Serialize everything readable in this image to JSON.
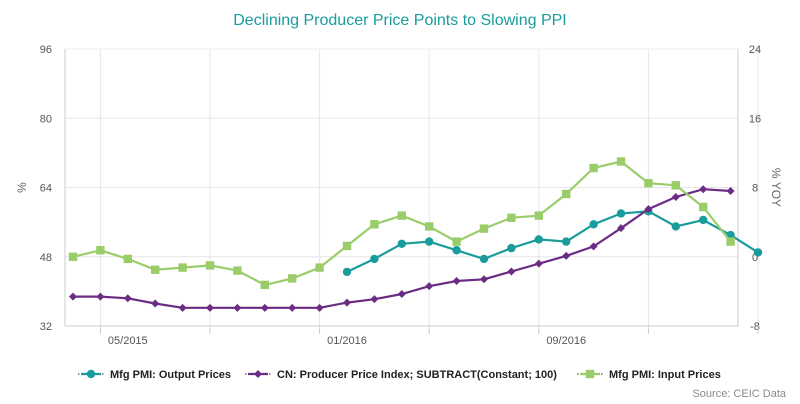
{
  "chart_data": {
    "type": "line",
    "title": "Declining Producer Price Points to Slowing PPI",
    "x_tick_labels": [
      "05/2015",
      "01/2016",
      "09/2016"
    ],
    "x": [
      "2015-03",
      "2015-04",
      "2015-05",
      "2015-06",
      "2015-07",
      "2015-08",
      "2015-09",
      "2015-10",
      "2015-11",
      "2015-12",
      "2016-01",
      "2016-02",
      "2016-03",
      "2016-04",
      "2016-05",
      "2016-06",
      "2016-07",
      "2016-08",
      "2016-09",
      "2016-10",
      "2016-11",
      "2016-12",
      "2017-01",
      "2017-02",
      "2017-03",
      "2017-04"
    ],
    "y_left": {
      "label": "%",
      "range": [
        32,
        96
      ],
      "ticks": [
        32,
        48,
        64,
        80,
        96
      ]
    },
    "y_right": {
      "label": "% YOY",
      "range": [
        -8,
        24
      ],
      "ticks": [
        -8,
        0,
        8,
        16,
        24
      ]
    },
    "grid": true,
    "legend_position": "bottom",
    "series": [
      {
        "name": "Mfg PMI: Output Prices",
        "axis": "left",
        "color": "#1a9c9c",
        "marker": "circle",
        "values": [
          null,
          null,
          null,
          null,
          null,
          null,
          null,
          null,
          null,
          null,
          44.5,
          47.5,
          51.0,
          51.5,
          49.5,
          47.5,
          50.0,
          52.0,
          51.5,
          55.5,
          58.0,
          58.5,
          55.0,
          56.5,
          53.0,
          49.0
        ]
      },
      {
        "name": "CN: Producer Price Index; SUBTRACT(Constant; 100)",
        "axis": "right",
        "color": "#6b2c84",
        "marker": "diamond",
        "values": [
          -4.6,
          -4.6,
          -4.8,
          -5.4,
          -5.9,
          -5.9,
          -5.9,
          -5.9,
          -5.9,
          -5.9,
          -5.3,
          -4.9,
          -4.3,
          -3.4,
          -2.8,
          -2.6,
          -1.7,
          -0.8,
          0.1,
          1.2,
          3.3,
          5.5,
          6.9,
          7.8,
          7.6,
          null
        ]
      },
      {
        "name": "Mfg PMI: Input Prices",
        "axis": "left",
        "color": "#9acd6a",
        "marker": "square",
        "values": [
          48.0,
          49.5,
          47.5,
          45.0,
          45.5,
          46.0,
          44.8,
          41.5,
          43.0,
          45.5,
          50.5,
          55.5,
          57.5,
          55.0,
          51.5,
          54.5,
          57.0,
          57.5,
          62.5,
          68.5,
          70.0,
          65.0,
          64.5,
          59.5,
          51.5,
          null
        ]
      }
    ]
  },
  "source": "Source: CEIC Data"
}
